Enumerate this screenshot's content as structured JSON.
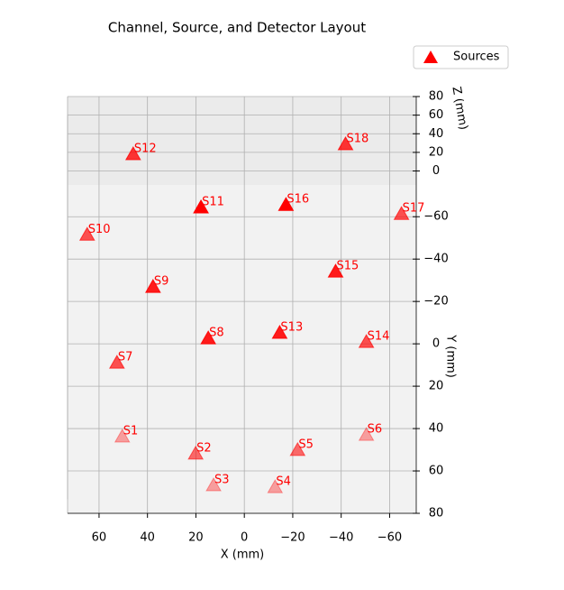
{
  "chart_data": {
    "type": "scatter3d",
    "title": "Channel, Source, and Detector Layout",
    "x_label": "X (mm)",
    "y_label": "Y (mm)",
    "z_label": "Z (mm)",
    "xlim": [
      73,
      -71
    ],
    "ylim": [
      -75,
      80
    ],
    "zlim": [
      -15,
      80
    ],
    "xticks": [
      60,
      40,
      20,
      0,
      {
        "value": -20,
        "label": "−20"
      },
      {
        "value": -40,
        "label": "−40"
      },
      {
        "value": -60,
        "label": "−60"
      }
    ],
    "yticks": [
      {
        "value": -60,
        "label": "−60"
      },
      {
        "value": -40,
        "label": "−40"
      },
      {
        "value": -20,
        "label": "−20"
      },
      0,
      20,
      40,
      60,
      80
    ],
    "zticks": [
      0,
      20,
      40,
      60,
      80
    ],
    "grid": true,
    "legend": "upper right",
    "series": [
      {
        "name": "Sources",
        "color": "#ff0000",
        "labels": [
          "S1",
          "S2",
          "S3",
          "S4",
          "S5",
          "S6",
          "S7",
          "S8",
          "S9",
          "S10",
          "S11",
          "S12",
          "S13",
          "S14",
          "S15",
          "S16",
          "S17",
          "S18"
        ],
        "x": [
          50.4,
          20.1,
          12.7,
          -12.7,
          -22,
          -50.4,
          52.6,
          14.9,
          37.7,
          64.9,
          17.9,
          45.9,
          -14.6,
          -50.4,
          -37.7,
          -17.2,
          -64.9,
          -41.8
        ],
        "y": [
          50.4,
          67.2,
          73.4,
          74.3,
          65.5,
          49.6,
          28.7,
          26,
          1.7,
          -31.7,
          -31.4,
          -65.3,
          23.4,
          18.9,
          -5.5,
          -32.6,
          -41.5,
          -70
        ],
        "z": [
          0,
          20,
          0,
          0,
          20,
          0,
          30,
          50,
          50,
          30,
          60,
          40,
          50,
          30,
          50,
          60,
          30,
          40
        ]
      }
    ]
  }
}
